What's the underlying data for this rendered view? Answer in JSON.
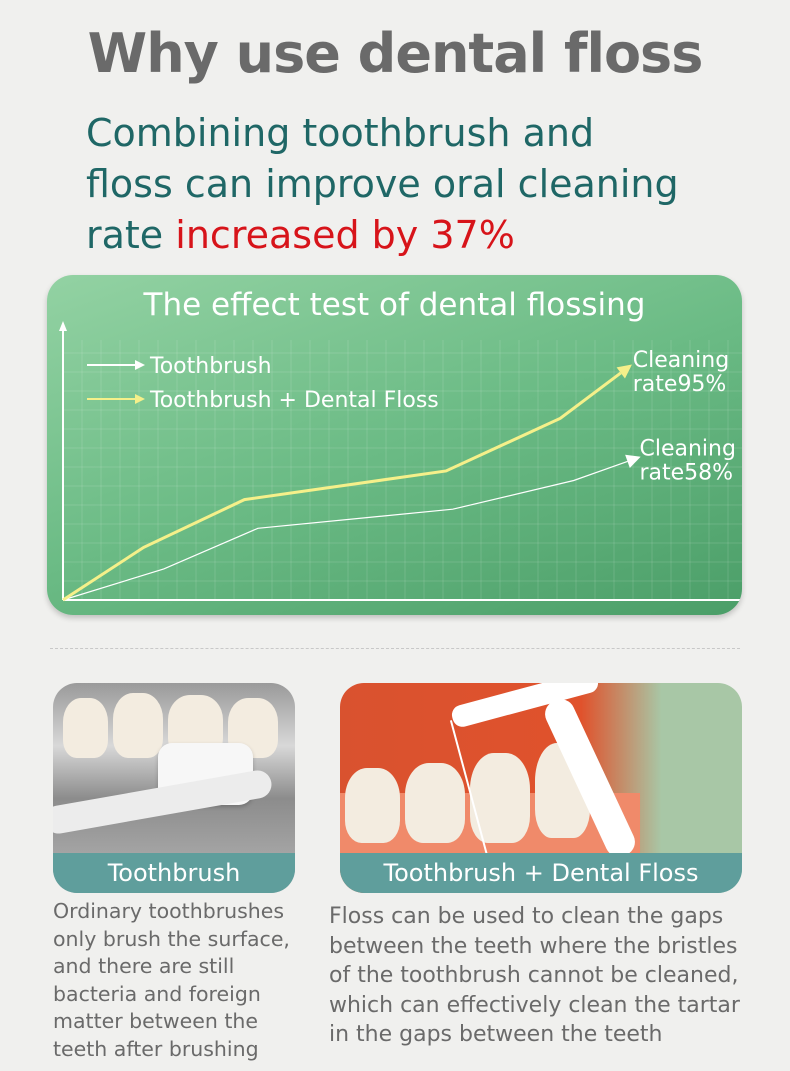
{
  "title": "Why use dental floss",
  "subtitle": {
    "line1": "Combining toothbrush and",
    "line2": "floss can improve oral cleaning",
    "line3_prefix": "rate ",
    "line3_highlight": "increased by 37%"
  },
  "colors": {
    "title": "#6a6a6a",
    "subtitle": "#1f6766",
    "highlight": "#d7141a",
    "card": "#6bbb85",
    "floss_line": "#f5f08a",
    "brush_line": "#ffffff",
    "band": "#5f9e9c"
  },
  "chart_data": {
    "type": "line",
    "title": "The effect test of dental flossing",
    "grid": true,
    "legend": "top-left",
    "xlim": [
      0,
      100
    ],
    "ylim": [
      0,
      100
    ],
    "series": [
      {
        "name": "Toothbrush",
        "color": "#ffffff",
        "x": [
          0,
          15,
          29,
          58,
          76,
          84
        ],
        "y": [
          0,
          13,
          30,
          38,
          50,
          58
        ],
        "end_label": [
          "Cleaning",
          "rate58%"
        ]
      },
      {
        "name": "Toothbrush + Dental Floss",
        "color": "#f5f08a",
        "x": [
          0,
          12,
          27,
          57,
          74,
          83
        ],
        "y": [
          0,
          22,
          42,
          54,
          76,
          95
        ],
        "end_label": [
          "Cleaning",
          "rate95%"
        ]
      }
    ]
  },
  "panels": [
    {
      "label": "Toothbrush",
      "text": [
        "Ordinary toothbrushes",
        "only brush the surface,",
        "and there are still",
        "bacteria and foreign",
        "matter between the",
        "teeth after brushing"
      ]
    },
    {
      "label": "Toothbrush + Dental Floss",
      "text": [
        "Floss can be used to clean the gaps",
        "between the teeth where the bristles",
        "of the toothbrush cannot be cleaned,",
        "which can effectively clean the tartar",
        "in the gaps between the teeth"
      ]
    }
  ]
}
